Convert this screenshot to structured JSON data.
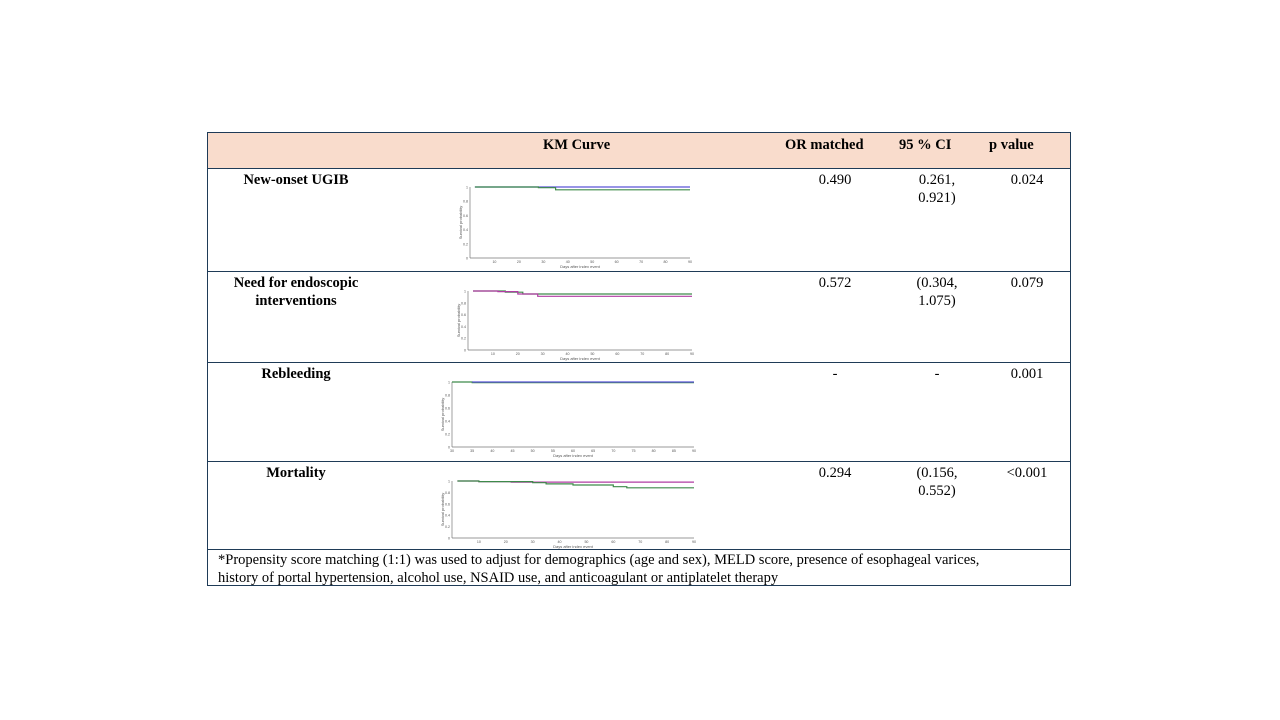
{
  "header": {
    "km_curve": "KM Curve",
    "or_matched": "OR matched",
    "ci": "95 % CI",
    "p_value": "p value"
  },
  "rows": [
    {
      "label_lines": [
        "New-onset UGIB"
      ],
      "or": "0.490",
      "ci_lines": [
        "0.261,",
        "0.921)"
      ],
      "p": "0.024",
      "chart_data": {
        "type": "line",
        "xlabel": "Days after index event",
        "ylabel": "Survival probability",
        "x_ticks": [
          10,
          20,
          30,
          40,
          50,
          60,
          70,
          80,
          90
        ],
        "y_ticks": [
          0,
          0.2,
          0.4,
          0.6,
          0.8,
          1
        ],
        "xlim": [
          0,
          90
        ],
        "ylim": [
          0,
          1
        ],
        "series": [
          {
            "color": "#5b55d6",
            "points": [
              [
                2,
                1.0
              ],
              [
                90,
                1.0
              ]
            ]
          },
          {
            "color": "#3e8a4a",
            "points": [
              [
                2,
                1.0
              ],
              [
                28,
                0.99
              ],
              [
                35,
                0.96
              ],
              [
                90,
                0.96
              ]
            ]
          }
        ]
      }
    },
    {
      "label_lines": [
        "Need for endoscopic",
        "interventions"
      ],
      "or": "0.572",
      "ci_lines": [
        "(0.304,",
        "1.075)"
      ],
      "p": "0.079",
      "chart_data": {
        "type": "line",
        "xlabel": "Days after index event",
        "ylabel": "Survival probability",
        "x_ticks": [
          10,
          20,
          30,
          40,
          50,
          60,
          70,
          80,
          90
        ],
        "y_ticks": [
          0,
          0.2,
          0.4,
          0.6,
          0.8,
          1
        ],
        "xlim": [
          0,
          90
        ],
        "ylim": [
          0,
          1
        ],
        "series": [
          {
            "color": "#3e8a4a",
            "points": [
              [
                2,
                1.0
              ],
              [
                15,
                0.98
              ],
              [
                22,
                0.95
              ],
              [
                90,
                0.95
              ]
            ]
          },
          {
            "color": "#b03da3",
            "points": [
              [
                2,
                1.0
              ],
              [
                12,
                0.99
              ],
              [
                20,
                0.95
              ],
              [
                28,
                0.91
              ],
              [
                90,
                0.91
              ]
            ]
          }
        ]
      }
    },
    {
      "label_lines": [
        "Rebleeding"
      ],
      "or": "-",
      "ci_lines": [
        "-"
      ],
      "p": "0.001",
      "chart_data": {
        "type": "line",
        "xlabel": "Days after index event",
        "ylabel": "Survival probability",
        "x_ticks": [
          30,
          35,
          40,
          45,
          50,
          55,
          60,
          65,
          70,
          75,
          80,
          85,
          90
        ],
        "y_ticks": [
          0,
          0.2,
          0.4,
          0.6,
          0.8,
          1
        ],
        "xlim": [
          30,
          90
        ],
        "ylim": [
          0,
          1
        ],
        "series": [
          {
            "color": "#3e8a4a",
            "points": [
              [
                30,
                1.0
              ],
              [
                35,
                1.0
              ],
              [
                35,
                0.99
              ],
              [
                90,
                0.99
              ]
            ]
          },
          {
            "color": "#5b55d6",
            "points": [
              [
                35,
                1.0
              ],
              [
                90,
                1.0
              ]
            ]
          }
        ]
      }
    },
    {
      "label_lines": [
        "Mortality"
      ],
      "or": "0.294",
      "ci_lines": [
        "(0.156,",
        "0.552)"
      ],
      "p": "<0.001",
      "chart_data": {
        "type": "line",
        "xlabel": "Days after index event",
        "ylabel": "Survival probability",
        "x_ticks": [
          10,
          20,
          30,
          40,
          50,
          60,
          70,
          80,
          90
        ],
        "y_ticks": [
          0,
          0.2,
          0.4,
          0.6,
          0.8,
          1
        ],
        "xlim": [
          0,
          90
        ],
        "ylim": [
          0,
          1
        ],
        "series": [
          {
            "color": "#b03da3",
            "points": [
              [
                2,
                1.0
              ],
              [
                10,
                0.99
              ],
              [
                22,
                0.98
              ],
              [
                90,
                0.98
              ]
            ]
          },
          {
            "color": "#3e8a4a",
            "points": [
              [
                2,
                1.0
              ],
              [
                10,
                0.99
              ],
              [
                30,
                0.97
              ],
              [
                35,
                0.95
              ],
              [
                45,
                0.93
              ],
              [
                60,
                0.9
              ],
              [
                65,
                0.88
              ],
              [
                90,
                0.88
              ]
            ]
          }
        ]
      }
    }
  ],
  "footnote_lines": [
    "*Propensity score matching (1:1) was used to adjust for demographics (age and sex), MELD score, presence of esophageal varices,",
    "history of portal hypertension, alcohol use, NSAID use, and anticoagulant or antiplatelet therapy"
  ]
}
